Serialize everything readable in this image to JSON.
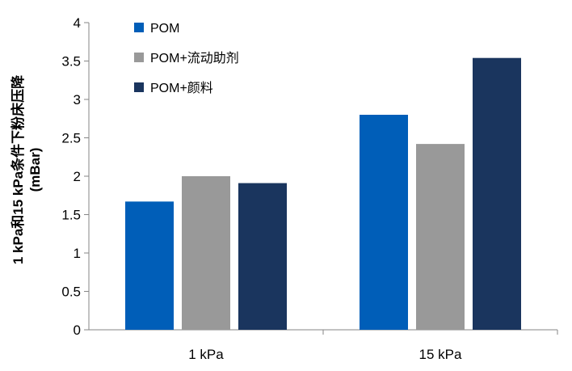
{
  "chart_data": {
    "type": "bar",
    "title": "",
    "ylabel_line1": "1 kPa和15 kPa条件下粉床压降",
    "ylabel_line2": "(mBar)",
    "xlabel": "",
    "categories": [
      "1 kPa",
      "15 kPa"
    ],
    "series": [
      {
        "name": "POM",
        "values": [
          1.67,
          2.8
        ],
        "color": "#005EB8"
      },
      {
        "name": "POM+流动助剂",
        "values": [
          2.0,
          2.42
        ],
        "color": "#999999"
      },
      {
        "name": "POM+颜料",
        "values": [
          1.91,
          3.54
        ],
        "color": "#1A355E"
      }
    ],
    "ylim": [
      0,
      4
    ],
    "yticks": [
      "0",
      "0.5",
      "1",
      "1.5",
      "2",
      "2.5",
      "3",
      "3.5",
      "4"
    ],
    "grid": false,
    "legend_position": "top-left"
  }
}
